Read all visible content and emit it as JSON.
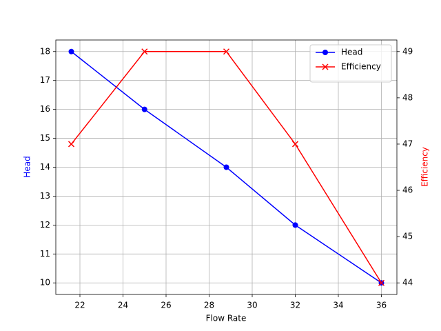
{
  "chart_data": {
    "type": "line",
    "xlabel": "Flow Rate",
    "ylabel": "Head",
    "y2label": "Efficiency",
    "x": [
      21.6,
      25,
      28.8,
      32,
      36
    ],
    "series": [
      {
        "name": "Head",
        "color": "#0000ff",
        "marker": "o",
        "axis": "y",
        "values": [
          18,
          16,
          14,
          12,
          10
        ]
      },
      {
        "name": "Efficiency",
        "color": "#ff0000",
        "marker": "x",
        "axis": "y2",
        "values": [
          47,
          49,
          49,
          47,
          44
        ]
      }
    ],
    "xlim": [
      20.88,
      36.72
    ],
    "xticks": [
      22,
      24,
      26,
      28,
      30,
      32,
      34,
      36
    ],
    "ylim": [
      9.6,
      18.4
    ],
    "yticks": [
      10,
      11,
      12,
      13,
      14,
      15,
      16,
      17,
      18
    ],
    "y2lim": [
      43.75,
      49.25
    ],
    "y2ticks": [
      44,
      45,
      46,
      47,
      48,
      49
    ],
    "grid": true,
    "legend": "upper right"
  }
}
